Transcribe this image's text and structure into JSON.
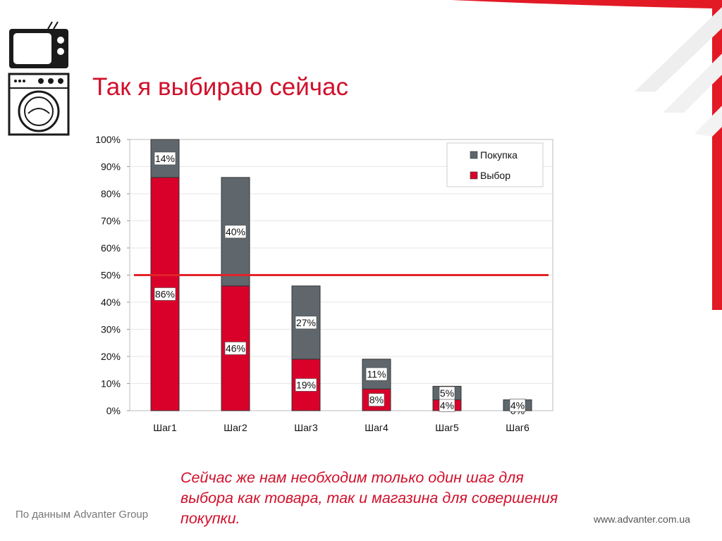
{
  "slide": {
    "title": "Так я выбираю сейчас",
    "note": "Сейчас же нам необходим только один шаг для выбора как товара, так и магазина для совершения покупки.",
    "source": "По данным Advanter Group",
    "website": "www.advanter.com.ua",
    "icons": [
      "tv-icon",
      "washing-machine-icon"
    ]
  },
  "colors": {
    "accent": "#d0102b",
    "bar_choice": "#d9002a",
    "bar_purchase": "#5f676d",
    "reference_line": "#e32229"
  },
  "chart_data": {
    "type": "bar",
    "stacked": true,
    "categories": [
      "Шаг1",
      "Шаг2",
      "Шаг3",
      "Шаг4",
      "Шаг5",
      "Шаг6"
    ],
    "series": [
      {
        "name": "Выбор",
        "values": [
          86,
          46,
          19,
          8,
          4,
          0
        ],
        "labels": [
          "86%",
          "46%",
          "19%",
          "8%",
          "4%",
          "0%"
        ]
      },
      {
        "name": "Покупка",
        "values": [
          14,
          40,
          27,
          11,
          5,
          4
        ],
        "labels": [
          "14%",
          "40%",
          "27%",
          "11%",
          "5%",
          "4%"
        ]
      }
    ],
    "y_ticks": [
      "0%",
      "10%",
      "20%",
      "30%",
      "40%",
      "50%",
      "60%",
      "70%",
      "80%",
      "90%",
      "100%"
    ],
    "ylim": [
      0,
      100
    ],
    "reference_line": 50,
    "grid": true,
    "legend": {
      "position": "top-right",
      "entries": [
        "Покупка",
        "Выбор"
      ]
    }
  }
}
